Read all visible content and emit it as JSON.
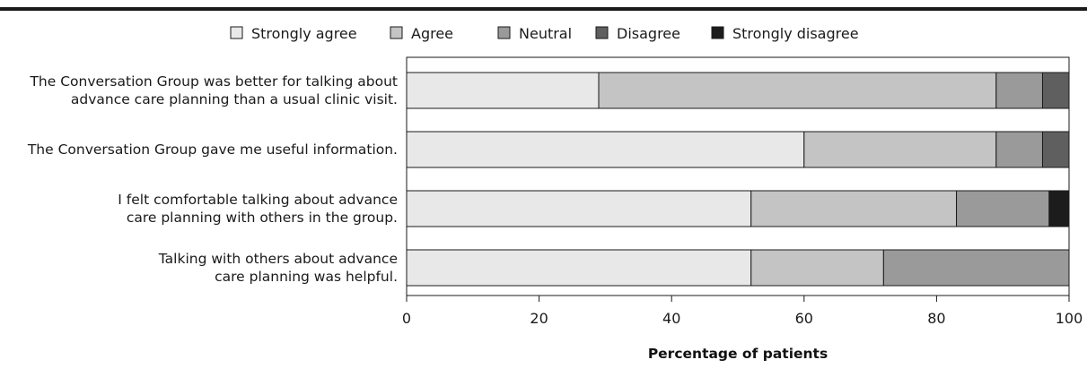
{
  "chart_data": {
    "type": "bar",
    "orientation": "horizontal",
    "stacked": true,
    "title": "",
    "xlabel": "Percentage of patients",
    "ylabel": "",
    "xlim": [
      0,
      100
    ],
    "xticks": [
      0,
      20,
      40,
      60,
      80,
      100
    ],
    "grid": false,
    "legend_position": "top",
    "categories": [
      [
        "The Conversation Group was better for talking about",
        "advance care planning than a usual clinic visit."
      ],
      [
        "The Conversation Group gave me useful information."
      ],
      [
        "I felt comfortable talking about advance",
        "care planning with others in the group."
      ],
      [
        "Talking with others about advance",
        "care planning was helpful."
      ]
    ],
    "series": [
      {
        "name": "Strongly agree",
        "color": "#e8e8e8",
        "values": [
          29,
          60,
          52,
          52
        ]
      },
      {
        "name": "Agree",
        "color": "#c4c4c4",
        "values": [
          60,
          29,
          31,
          20
        ]
      },
      {
        "name": "Neutral",
        "color": "#9a9a9a",
        "values": [
          7,
          7,
          14,
          28
        ]
      },
      {
        "name": "Disagree",
        "color": "#5f5f5f",
        "values": [
          4,
          4,
          0,
          0
        ]
      },
      {
        "name": "Strongly disagree",
        "color": "#1c1c1c",
        "values": [
          0,
          0,
          3,
          0
        ]
      }
    ]
  }
}
